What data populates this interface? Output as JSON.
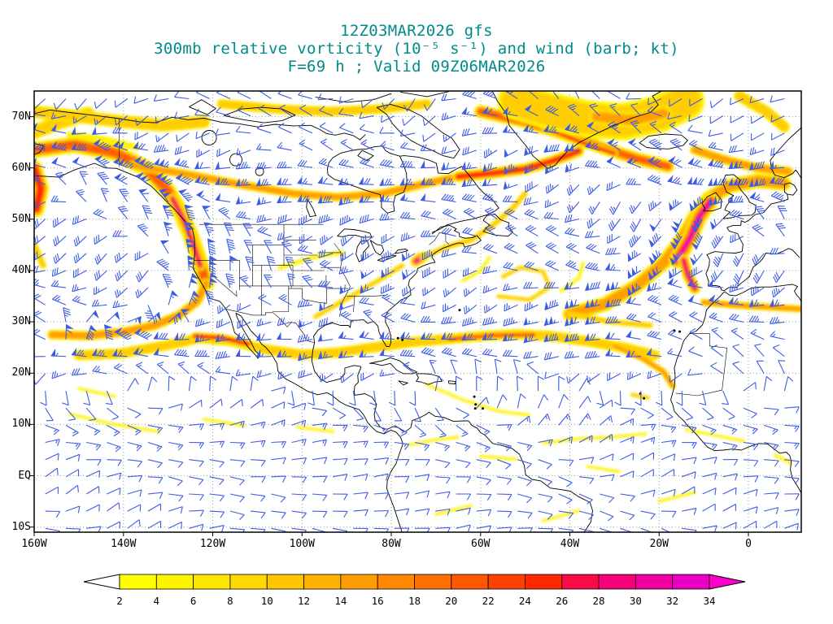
{
  "title": {
    "line1": "12Z03MAR2026 gfs",
    "line2": "300mb relative vorticity (10⁻⁵ s⁻¹) and wind (barb; kt)",
    "line3": "F=69 h ; Valid 09Z06MAR2026"
  },
  "axes": {
    "lat_labels": [
      "70N",
      "60N",
      "50N",
      "40N",
      "30N",
      "20N",
      "10N",
      "EQ",
      "10S"
    ],
    "lon_labels": [
      "160W",
      "140W",
      "120W",
      "100W",
      "80W",
      "60W",
      "40W",
      "20W",
      "0"
    ]
  },
  "colorbar": {
    "tick_labels": [
      "2",
      "4",
      "6",
      "8",
      "10",
      "12",
      "14",
      "16",
      "18",
      "20",
      "22",
      "24",
      "26",
      "28",
      "30",
      "32",
      "34"
    ],
    "segment_colors": [
      "#FFFF00",
      "#FFF400",
      "#FFE600",
      "#FFD800",
      "#FFC600",
      "#FFB200",
      "#FF9E00",
      "#FF8800",
      "#FF7000",
      "#FF5800",
      "#FF4000",
      "#FF2800",
      "#FA0A46",
      "#F40078",
      "#EE00A0",
      "#E900C4"
    ],
    "left_arrow_color": "#FFFFFF",
    "right_arrow_color": "#FF00CC"
  },
  "colors": {
    "title_text": "#008B8B",
    "axis_text": "#000000",
    "wind_barb": "#3D5CE6",
    "coastline": "#000000",
    "gridline": "#9A9A9A",
    "map_frame": "#000000",
    "vorticity_ramp": [
      "#FFF200",
      "#FFCE00",
      "#FF9E00",
      "#FF6000",
      "#FF2800",
      "#F4006E",
      "#EE00B8"
    ]
  },
  "chart_data": {
    "type": "heatmap",
    "title": "300mb relative vorticity (10⁻⁵ s⁻¹) and wind (barb; kt)",
    "model": "gfs",
    "init_time": "12Z03MAR2026",
    "forecast_hour_label": "F=69 h",
    "valid_time": "09Z06MAR2026",
    "x_axis": {
      "label": "longitude",
      "tick_labels": [
        "160W",
        "140W",
        "120W",
        "100W",
        "80W",
        "60W",
        "40W",
        "20W",
        "0"
      ],
      "range": [
        "160W",
        "12E"
      ]
    },
    "y_axis": {
      "label": "latitude",
      "tick_labels": [
        "70N",
        "60N",
        "50N",
        "40N",
        "30N",
        "20N",
        "10N",
        "EQ",
        "10S"
      ],
      "range": [
        "10S",
        "75N"
      ]
    },
    "color_scale": {
      "units": "10⁻⁵ s⁻¹",
      "min": 2,
      "max": 34,
      "interval": 2,
      "palette": "yellow-orange-red-magenta"
    },
    "overlays": [
      {
        "type": "wind_barbs",
        "units": "kt",
        "color": "blue"
      }
    ],
    "vorticity_maxima": [
      {
        "region": "NE Atlantic / W Europe jet arc near 12W 42-54N",
        "approx_value": 34
      },
      {
        "region": "US Pacific Northwest coast 127-122W 42-52N",
        "approx_value": 30
      },
      {
        "region": "Gulf of Alaska at west map edge 160W 52-60N",
        "approx_value": 28
      },
      {
        "region": "New York / New England spot 73W 42N",
        "approx_value": 30
      },
      {
        "region": "Labrador Sea to S Greenland 57-38W 58-64N",
        "approx_value": 24
      },
      {
        "region": "Davis Strait to Iceland band 60-18W 60-71N",
        "approx_value": 20
      },
      {
        "region": "Baja California subtropical band 124-112W 25-28N",
        "approx_value": 22
      },
      {
        "region": "Central subtropical Atlantic band 67-48W 26-28N",
        "approx_value": 16
      },
      {
        "region": "NW Africa 33N band 10W-12E",
        "approx_value": 14
      },
      {
        "region": "Broad band near Greenland 52-14W 69-73N",
        "approx_value": 10
      }
    ]
  }
}
